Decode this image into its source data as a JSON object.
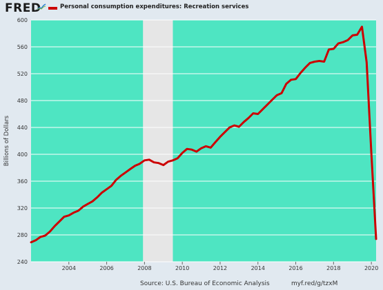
{
  "header": {
    "logo_text": "FRED",
    "logo_icon": "chart-line-icon",
    "legend_label": "Personal consumption expenditures: Recreation services"
  },
  "footer": {
    "source": "Source: U.S. Bureau of Economic Analysis",
    "url": "myf.red/g/tzxM"
  },
  "colors": {
    "plot_background": "#4ee5c2",
    "recession_shading": "#e6e6e6",
    "line": "#cc0000",
    "page_background": "#e1e9f0"
  },
  "chart_data": {
    "type": "line",
    "title": "",
    "xlabel": "",
    "ylabel": "Billions of Dollars",
    "ylim": [
      240,
      600
    ],
    "yticks": [
      240,
      280,
      320,
      360,
      400,
      440,
      480,
      520,
      560,
      600
    ],
    "xlim": [
      2002.0,
      2020.25
    ],
    "xticks": [
      2004,
      2006,
      2008,
      2010,
      2012,
      2014,
      2016,
      2018,
      2020
    ],
    "grid": true,
    "legend": "top-left",
    "recessions": [
      [
        2007.92,
        2009.5
      ]
    ],
    "series": [
      {
        "name": "Personal consumption expenditures: Recreation services",
        "x": [
          2002.0,
          2002.25,
          2002.5,
          2002.75,
          2003.0,
          2003.25,
          2003.5,
          2003.75,
          2004.0,
          2004.25,
          2004.5,
          2004.75,
          2005.0,
          2005.25,
          2005.5,
          2005.75,
          2006.0,
          2006.25,
          2006.5,
          2006.75,
          2007.0,
          2007.25,
          2007.5,
          2007.75,
          2008.0,
          2008.25,
          2008.5,
          2008.75,
          2009.0,
          2009.25,
          2009.5,
          2009.75,
          2010.0,
          2010.25,
          2010.5,
          2010.75,
          2011.0,
          2011.25,
          2011.5,
          2011.75,
          2012.0,
          2012.25,
          2012.5,
          2012.75,
          2013.0,
          2013.25,
          2013.5,
          2013.75,
          2014.0,
          2014.25,
          2014.5,
          2014.75,
          2015.0,
          2015.25,
          2015.5,
          2015.75,
          2016.0,
          2016.25,
          2016.5,
          2016.75,
          2017.0,
          2017.25,
          2017.5,
          2017.75,
          2018.0,
          2018.25,
          2018.5,
          2018.75,
          2019.0,
          2019.25,
          2019.5,
          2019.75,
          2020.0,
          2020.25
        ],
        "values": [
          269,
          272,
          277,
          279,
          285,
          293,
          300,
          307,
          309,
          313,
          316,
          322,
          326,
          330,
          336,
          343,
          348,
          353,
          362,
          368,
          373,
          378,
          383,
          386,
          391,
          392,
          388,
          387,
          384,
          389,
          391,
          394,
          402,
          408,
          407,
          404,
          409,
          412,
          410,
          418,
          426,
          433,
          440,
          443,
          441,
          448,
          454,
          461,
          460,
          467,
          474,
          481,
          488,
          491,
          505,
          511,
          512,
          521,
          529,
          536,
          538,
          539,
          538,
          556,
          557,
          565,
          567,
          570,
          577,
          578,
          590,
          537,
          400,
          274
        ]
      }
    ]
  }
}
